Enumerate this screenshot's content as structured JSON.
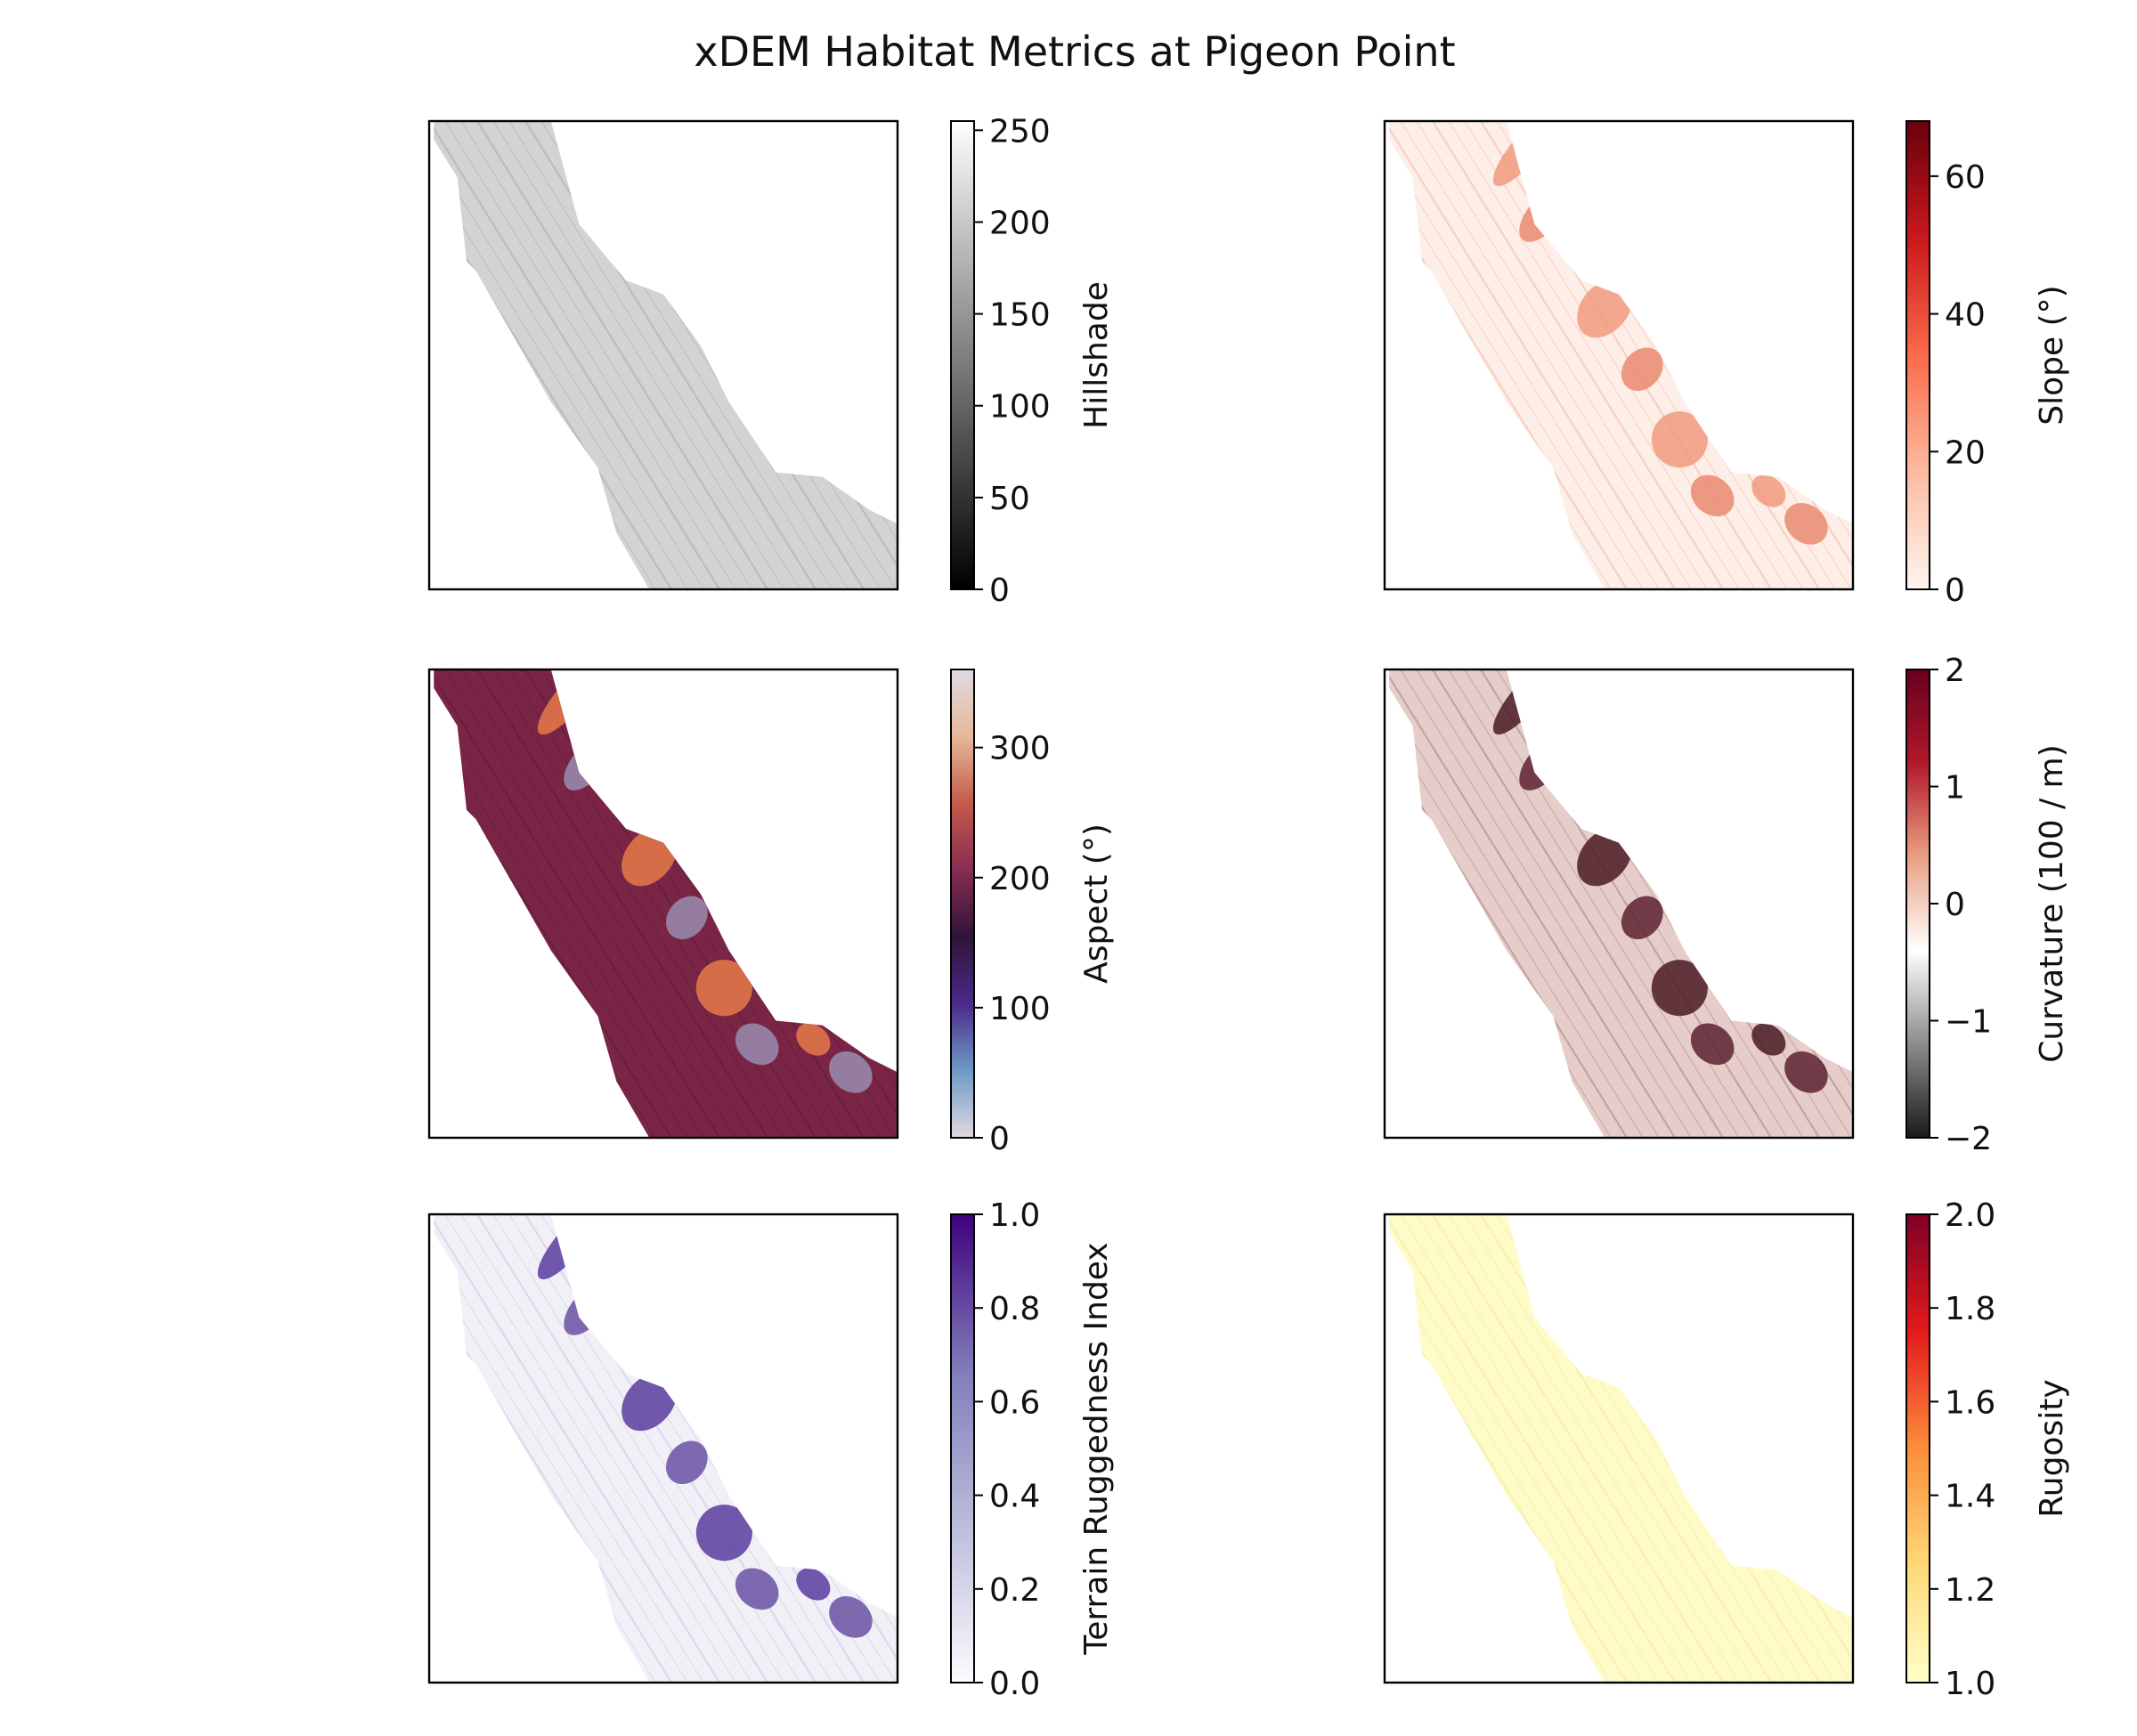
{
  "chart_data": {
    "type": "heatmap",
    "title": "xDEM Habitat Metrics at Pigeon Point",
    "panels": [
      {
        "id": "hillshade",
        "cbar_label": "Hillshade",
        "cmap": [
          "#000000",
          "#ffffff"
        ],
        "vmin": 0,
        "vmax": 255,
        "ticks": [
          0,
          50,
          100,
          150,
          200,
          250
        ],
        "tick_labels": [
          "0",
          "50",
          "100",
          "150",
          "200",
          "250"
        ],
        "base_color": "#d3d3d3",
        "texture": "#a9a9a9",
        "highlights": []
      },
      {
        "id": "slope",
        "cbar_label": "Slope (°)",
        "cmap": [
          "#fff5f0",
          "#fcbba1",
          "#fb6a4a",
          "#cb181d",
          "#67000d"
        ],
        "vmin": 0,
        "vmax": 68,
        "ticks": [
          0,
          20,
          40,
          60
        ],
        "tick_labels": [
          "0",
          "20",
          "40",
          "60"
        ],
        "base_color": "#fdeee8",
        "texture": "#f4b8a2",
        "highlights": [
          "#f19a7e",
          "#ea8a6e"
        ]
      },
      {
        "id": "aspect",
        "cbar_label": "Aspect (°)",
        "cmap": [
          "#e2d9e2",
          "#6e9ac4",
          "#4b2a8c",
          "#2f1437",
          "#862d52",
          "#c45a4a",
          "#e6b89a",
          "#e2d9e2"
        ],
        "vmin": 0,
        "vmax": 360,
        "ticks": [
          0,
          100,
          200,
          300
        ],
        "tick_labels": [
          "0",
          "100",
          "200",
          "300"
        ],
        "base_color": "#7a2546",
        "texture": "#5a1b3d",
        "highlights": [
          "#c4543f",
          "#9a8db0",
          "#d8734a"
        ]
      },
      {
        "id": "curvature",
        "cbar_label": "Curvature (100 / m)",
        "cmap": [
          "#1a1a1a",
          "#8c8c8c",
          "#ffffff",
          "#e9a082",
          "#b2182b",
          "#67001f"
        ],
        "vmin": -2,
        "vmax": 2,
        "ticks": [
          -2,
          -1,
          0,
          1,
          2
        ],
        "tick_labels": [
          "−2",
          "−1",
          "0",
          "1",
          "2"
        ],
        "base_color": "#e6cdca",
        "texture": "#a58380",
        "highlights": [
          "#4a1a24",
          "#5c2230"
        ]
      },
      {
        "id": "tri",
        "cbar_label": "Terrain Ruggedness Index",
        "cmap": [
          "#fcfbfd",
          "#bcbddc",
          "#807dba",
          "#3f007d"
        ],
        "vmin": 0,
        "vmax": 1,
        "ticks": [
          0,
          0.2,
          0.4,
          0.6,
          0.8,
          1
        ],
        "tick_labels": [
          "0.0",
          "0.2",
          "0.4",
          "0.6",
          "0.8",
          "1.0"
        ],
        "base_color": "#f1f0f7",
        "texture": "#c9c7e0",
        "highlights": [
          "#5a3c9e",
          "#6a51a3"
        ]
      },
      {
        "id": "rugosity",
        "cbar_label": "Rugosity",
        "cmap": [
          "#ffffcc",
          "#fed976",
          "#fd8d3c",
          "#e31a1c",
          "#800026"
        ],
        "vmin": 1,
        "vmax": 2,
        "ticks": [
          1,
          1.2,
          1.4,
          1.6,
          1.8,
          2
        ],
        "tick_labels": [
          "1.0",
          "1.2",
          "1.4",
          "1.6",
          "1.8",
          "2.0"
        ],
        "base_color": "#fefbc6",
        "texture": "#f0e6a8",
        "highlights": []
      }
    ]
  }
}
